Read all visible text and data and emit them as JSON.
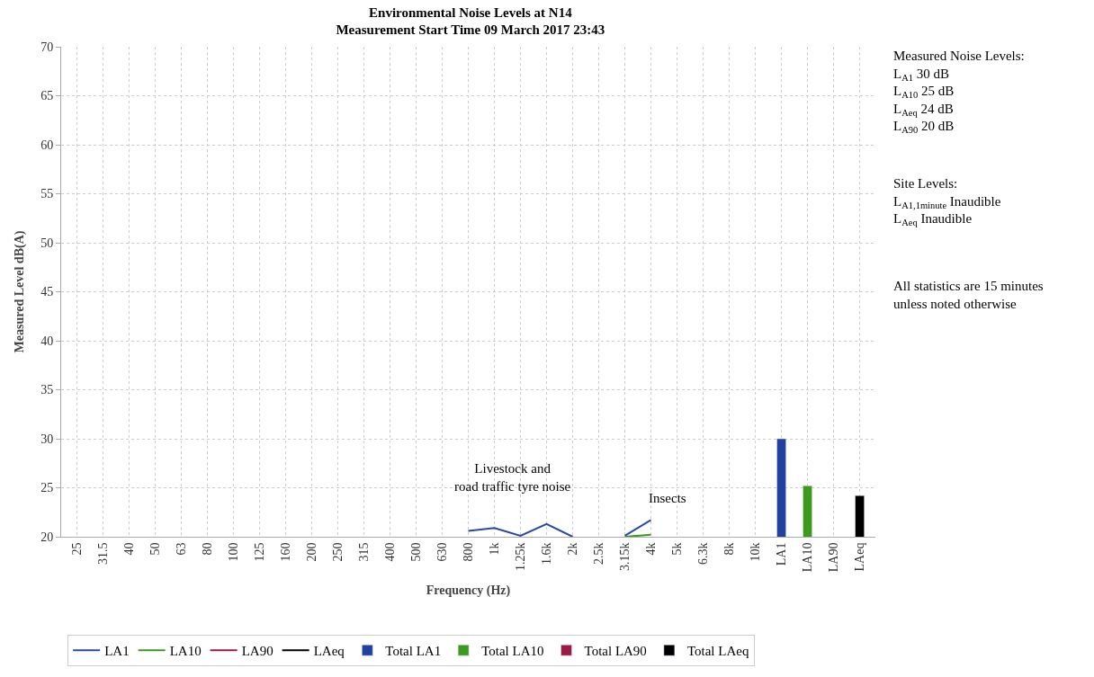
{
  "chart_data": {
    "type": "line",
    "title": "Environmental Noise Levels at N14\nMeasurement Start Time 09 March 2017 23:43",
    "xlabel": "Frequency (Hz)",
    "ylabel": "Measured Level dB(A)",
    "categories": [
      "25",
      "31.5",
      "40",
      "50",
      "63",
      "80",
      "100",
      "125",
      "160",
      "200",
      "250",
      "315",
      "400",
      "500",
      "630",
      "800",
      "1k",
      "1.25k",
      "1.6k",
      "2k",
      "2.5k",
      "3.15k",
      "4k",
      "5k",
      "6.3k",
      "8k",
      "10k",
      "LA1",
      "LA10",
      "LA90",
      "LAeq"
    ],
    "series": [
      {
        "name": "LA1",
        "color": "#2a47a8",
        "values": [
          null,
          null,
          null,
          null,
          null,
          null,
          null,
          null,
          null,
          null,
          null,
          null,
          null,
          null,
          null,
          20.6,
          20.9,
          20.1,
          21.3,
          20.0,
          null,
          20.1,
          21.7,
          null,
          null,
          null,
          null,
          null,
          null,
          null,
          null
        ]
      },
      {
        "name": "LA10",
        "color": "#3c9a1f",
        "values": [
          null,
          null,
          null,
          null,
          null,
          null,
          null,
          null,
          null,
          null,
          null,
          null,
          null,
          null,
          null,
          null,
          null,
          null,
          null,
          null,
          null,
          20.0,
          20.2,
          null,
          null,
          null,
          null,
          null,
          null,
          null,
          null
        ]
      },
      {
        "name": "LA90",
        "color": "#9b1b45",
        "values": [
          null,
          null,
          null,
          null,
          null,
          null,
          null,
          null,
          null,
          null,
          null,
          null,
          null,
          null,
          null,
          null,
          null,
          null,
          null,
          null,
          null,
          null,
          null,
          null,
          null,
          null,
          null,
          null,
          null,
          null,
          null
        ]
      },
      {
        "name": "LAeq",
        "color": "#000000",
        "values": [
          null,
          null,
          null,
          null,
          null,
          null,
          null,
          null,
          null,
          null,
          null,
          null,
          null,
          null,
          null,
          null,
          null,
          null,
          null,
          null,
          null,
          null,
          null,
          null,
          null,
          null,
          null,
          null,
          null,
          null,
          null
        ]
      },
      {
        "name": "Total LA1",
        "type": "bar",
        "color": "#2141a0",
        "values": [
          null,
          null,
          null,
          null,
          null,
          null,
          null,
          null,
          null,
          null,
          null,
          null,
          null,
          null,
          null,
          null,
          null,
          null,
          null,
          null,
          null,
          null,
          null,
          null,
          null,
          null,
          null,
          30,
          null,
          null,
          null
        ]
      },
      {
        "name": "Total LA10",
        "type": "bar",
        "color": "#3c9a1f",
        "values": [
          null,
          null,
          null,
          null,
          null,
          null,
          null,
          null,
          null,
          null,
          null,
          null,
          null,
          null,
          null,
          null,
          null,
          null,
          null,
          null,
          null,
          null,
          null,
          null,
          null,
          null,
          null,
          null,
          25.2,
          null,
          null
        ]
      },
      {
        "name": "Total LA90",
        "type": "bar",
        "color": "#9b1b45",
        "values": [
          null,
          null,
          null,
          null,
          null,
          null,
          null,
          null,
          null,
          null,
          null,
          null,
          null,
          null,
          null,
          null,
          null,
          null,
          null,
          null,
          null,
          null,
          null,
          null,
          null,
          null,
          null,
          null,
          null,
          null,
          null
        ]
      },
      {
        "name": "Total LAeq",
        "type": "bar",
        "color": "#000000",
        "values": [
          null,
          null,
          null,
          null,
          null,
          null,
          null,
          null,
          null,
          null,
          null,
          null,
          null,
          null,
          null,
          null,
          null,
          null,
          null,
          null,
          null,
          null,
          null,
          null,
          null,
          null,
          null,
          null,
          null,
          null,
          24.2
        ]
      }
    ],
    "ylim": [
      20,
      70
    ],
    "yticks": [
      20,
      25,
      30,
      35,
      40,
      45,
      50,
      55,
      60,
      65,
      70
    ],
    "grid": true,
    "legend": "bottom",
    "line_style": "solid",
    "marker": "none",
    "annotations": [
      "Livestock and\nroad traffic tyre noise",
      "Insects",
      "Measured Noise Levels:\nL$_{A1}$ 30 dB\nL$_{A10}$ 25 dB\nL$_{Aeq}$ 24 dB\nL$_{A90}$ 20 dB",
      "Site Levels:\nL$_{A1,1minute}$ Inaudible\nL$_{Aeq}$ Inaudible",
      "All statistics are 15 minutes\nunless noted otherwise"
    ]
  }
}
